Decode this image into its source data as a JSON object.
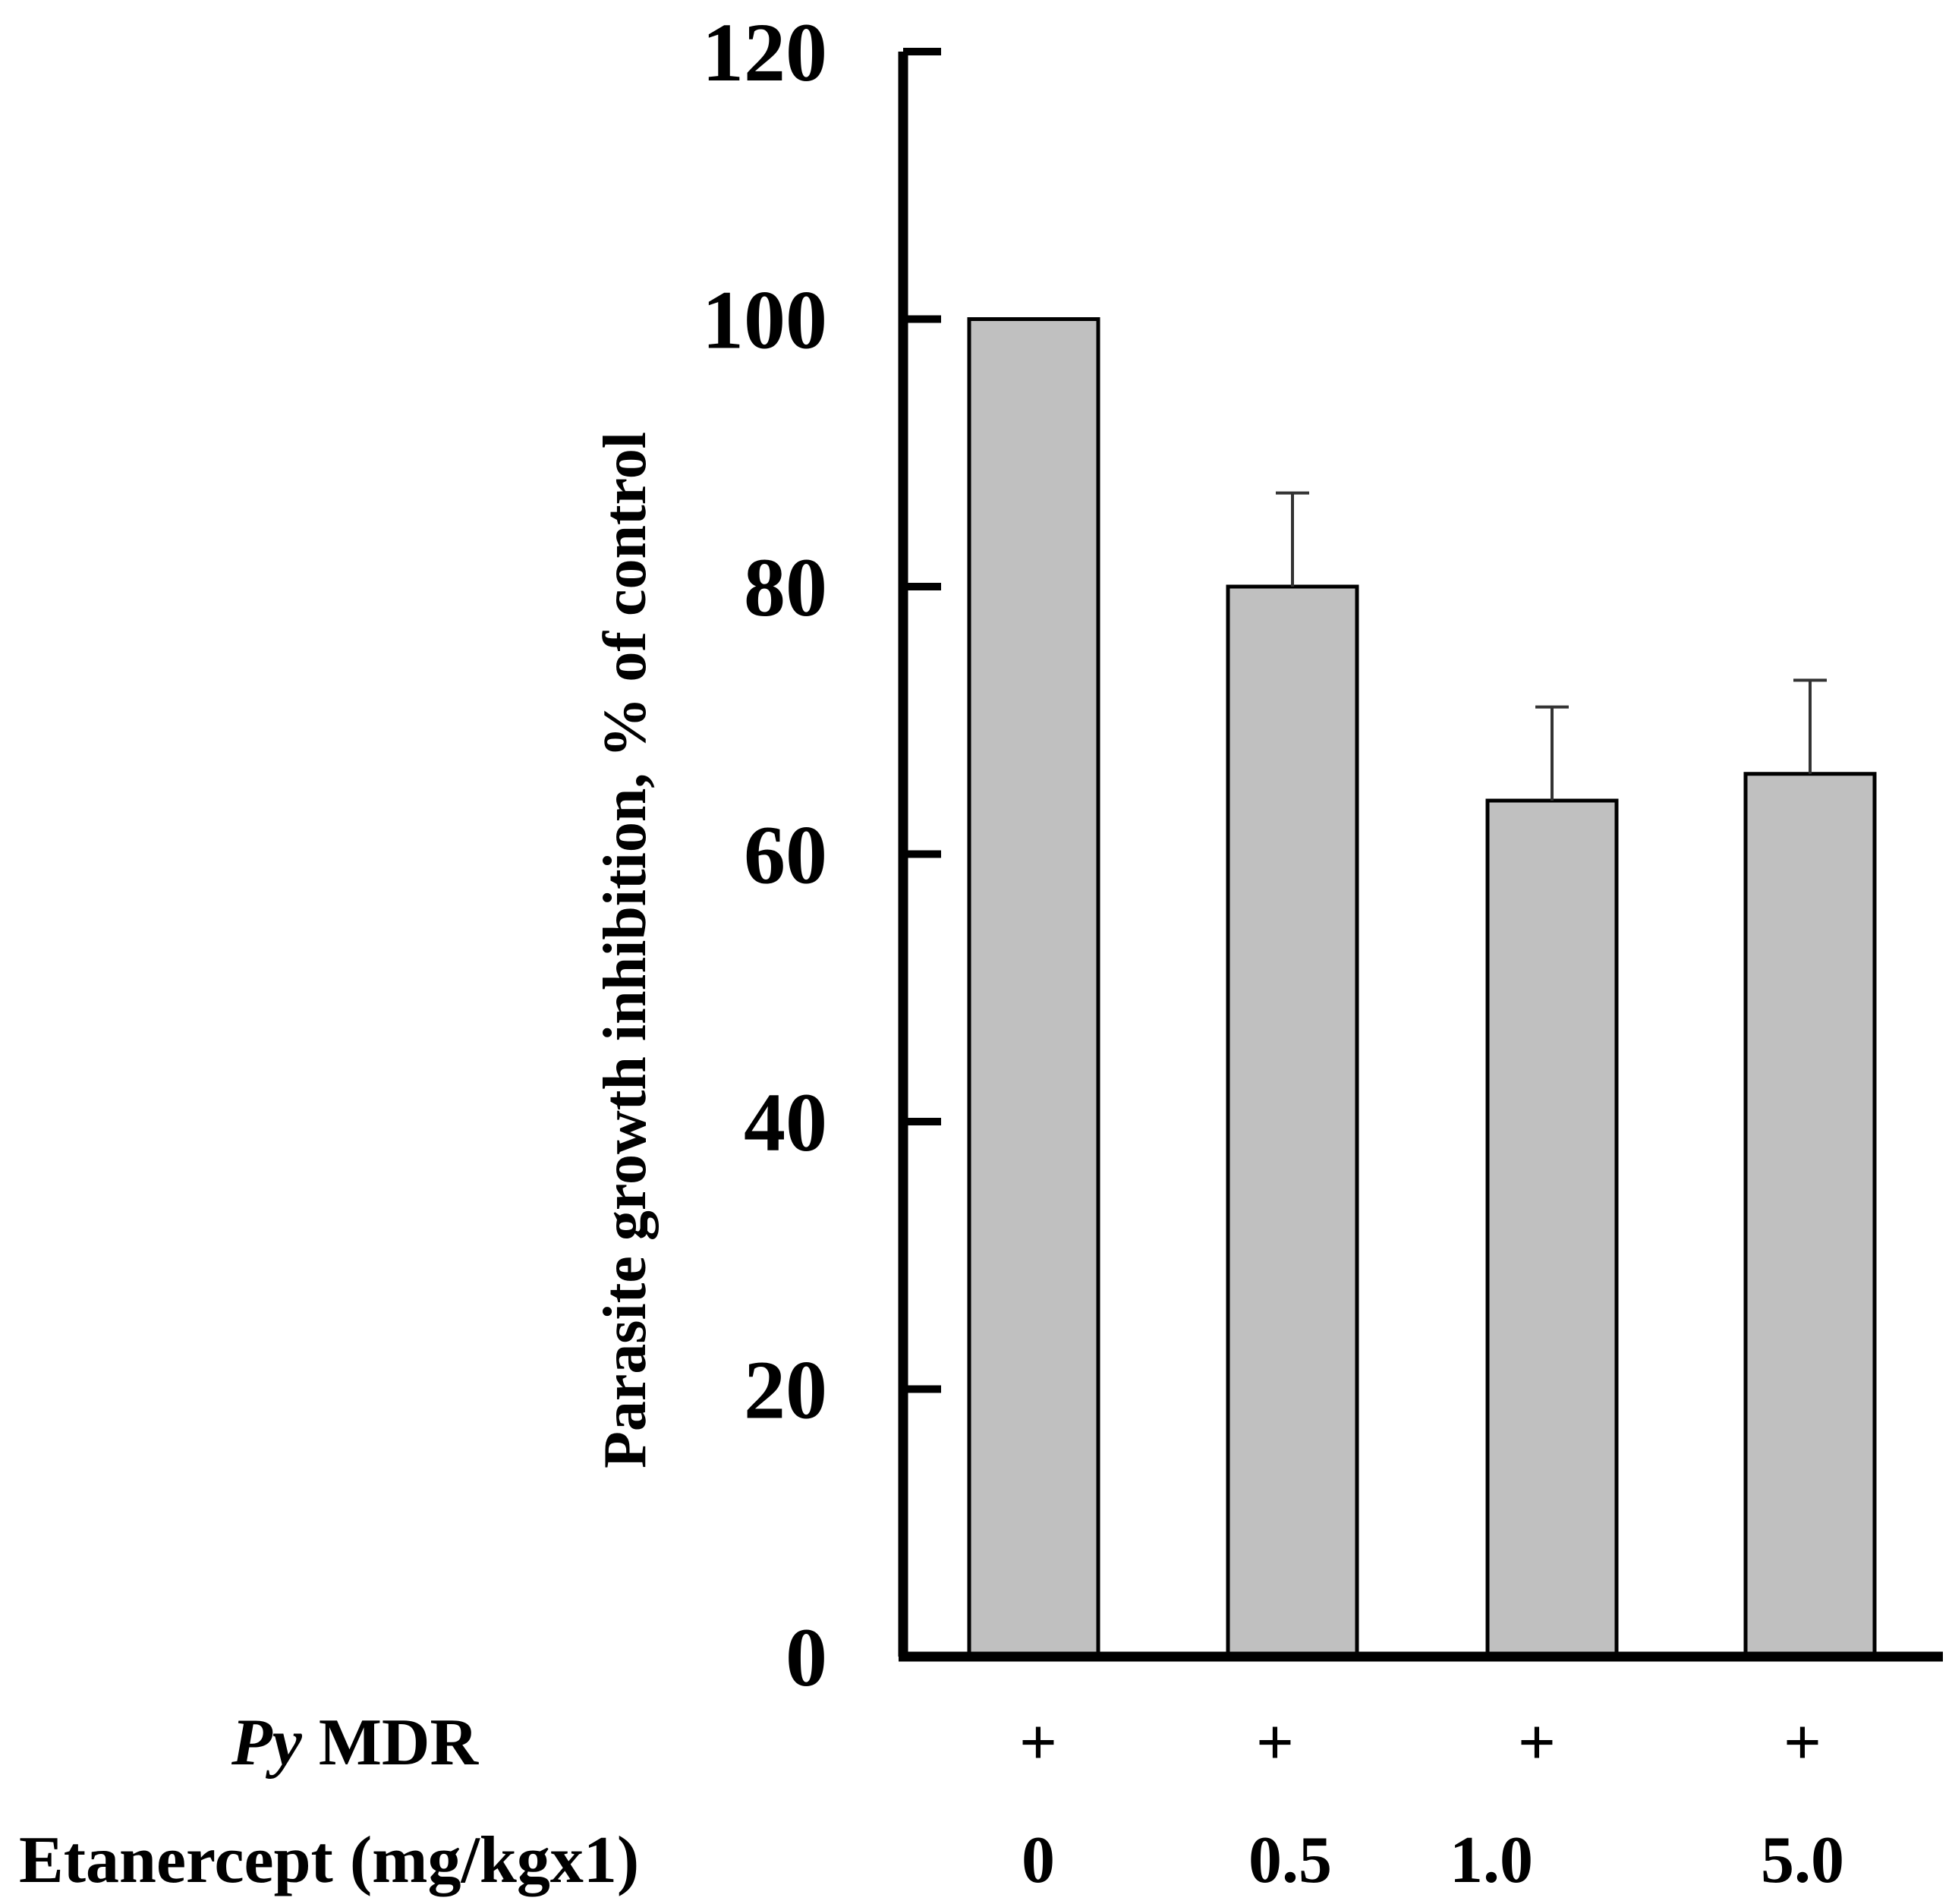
{
  "chart_data": {
    "type": "bar",
    "categories": [
      "0",
      "0.5",
      "1.0",
      "5.0"
    ],
    "values": [
      100,
      80,
      64,
      66
    ],
    "error_plus": [
      0,
      7,
      7,
      7
    ],
    "xlabel": "",
    "ylabel": "Parasite growth inhibition, % of control",
    "ylim": [
      0,
      120
    ],
    "yticks": [
      0,
      20,
      40,
      60,
      80,
      100,
      120
    ],
    "grid": false,
    "bar_color": "#c0c0c0",
    "row_labels": {
      "py_italic": "Py",
      "py_rest": " MDR",
      "etanercept": "Etanercept (mg/kgx1)"
    },
    "py_mdr_values": [
      "+",
      "+",
      "+",
      "+"
    ],
    "etanercept_values": [
      "0",
      "0.5",
      "1.0",
      "5.0"
    ]
  }
}
